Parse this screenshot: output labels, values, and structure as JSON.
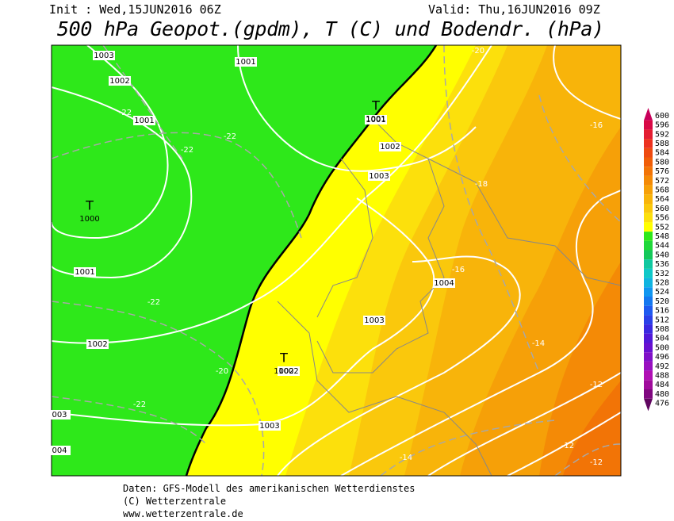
{
  "header": {
    "init": "Init : Wed,15JUN2016 06Z",
    "valid": "Valid: Thu,16JUN2016 09Z",
    "title": "500 hPa Geopot.(gpdm), T (C) und Bodendr. (hPa)"
  },
  "map": {
    "pressure_labels": [
      "1003",
      "1002",
      "1001",
      "1001",
      "1001",
      "1002",
      "1003",
      "1001",
      "1004",
      "1003",
      "1002",
      "1002",
      "1003",
      "003",
      "004"
    ],
    "temperature_labels": [
      "-22",
      "-22",
      "-22",
      "-18",
      "-16",
      "-16",
      "-22",
      "-14",
      "-20",
      "-22",
      "-12",
      "-14",
      "-12",
      "-12",
      "-20"
    ],
    "centers": [
      {
        "symbol": "T",
        "value": "1001"
      },
      {
        "symbol": "T",
        "value": "1000"
      },
      {
        "symbol": "T",
        "value": "1002"
      }
    ]
  },
  "colorbar": {
    "labels": [
      600,
      596,
      592,
      588,
      584,
      580,
      576,
      572,
      568,
      564,
      560,
      556,
      552,
      548,
      544,
      540,
      536,
      532,
      528,
      524,
      520,
      516,
      512,
      508,
      504,
      500,
      496,
      492,
      488,
      484,
      480,
      476
    ],
    "colors": [
      "#c8005a",
      "#d80a46",
      "#e41e32",
      "#ec3220",
      "#ee4a10",
      "#f05e08",
      "#f27406",
      "#f48a06",
      "#f6a008",
      "#f8b40a",
      "#fac80c",
      "#fce00c",
      "#ffff00",
      "#2ee81a",
      "#20d83a",
      "#14c85a",
      "#10c8a0",
      "#10c8c8",
      "#10b4e0",
      "#1096f0",
      "#1478f0",
      "#1e5af0",
      "#2a40e8",
      "#3a28e0",
      "#5018d8",
      "#6810d0",
      "#8010c8",
      "#9810c0",
      "#b010b4",
      "#a00c9c",
      "#800880",
      "#600660"
    ]
  },
  "footer": {
    "line1": "Daten: GFS-Modell des amerikanischen Wetterdienstes",
    "line2": "(C) Wetterzentrale",
    "line3": "www.wetterzentrale.de"
  }
}
